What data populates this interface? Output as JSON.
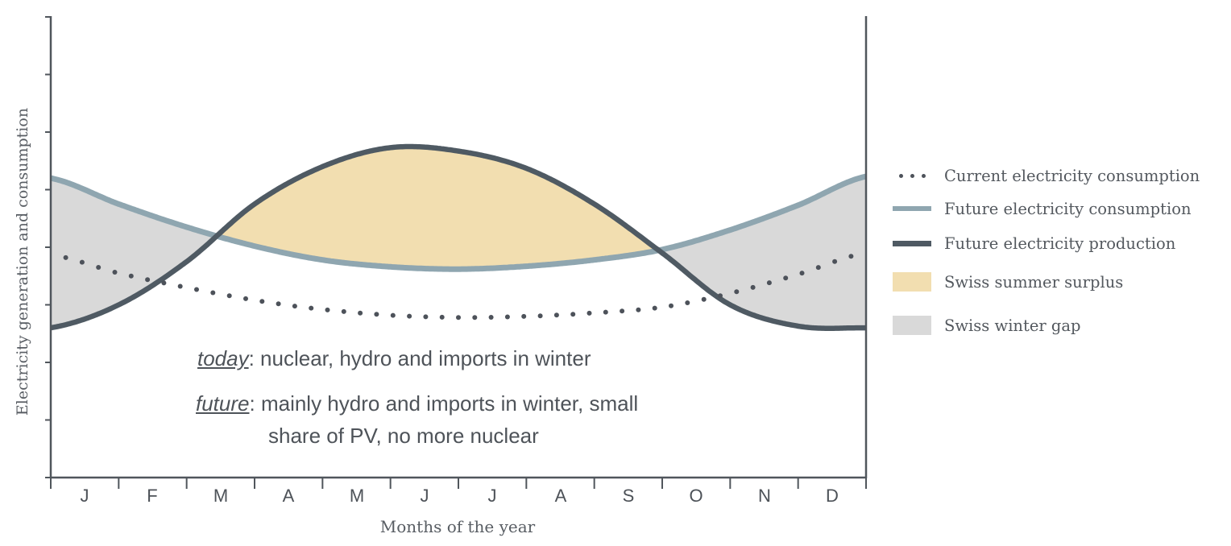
{
  "chart_data": {
    "type": "line",
    "xlabel": "Months of the year",
    "ylabel": "Electricity generation and consumption",
    "categories": [
      "J",
      "F",
      "M",
      "A",
      "M",
      "J",
      "J",
      "A",
      "S",
      "O",
      "N",
      "D"
    ],
    "ylim": [
      0,
      8
    ],
    "x": [
      0,
      1,
      2,
      3,
      4,
      5,
      6,
      7,
      8,
      9,
      10,
      11,
      12
    ],
    "series": [
      {
        "name": "Current electricity consumption",
        "style": "dotted",
        "color": "#4d525a",
        "values": [
          3.87,
          3.55,
          3.3,
          3.08,
          2.92,
          2.82,
          2.78,
          2.8,
          2.86,
          2.96,
          3.2,
          3.53,
          3.9
        ]
      },
      {
        "name": "Future electricity consumption",
        "style": "solid",
        "color": "#8fa6b0",
        "values": [
          5.2,
          4.75,
          4.35,
          4.02,
          3.78,
          3.66,
          3.62,
          3.67,
          3.78,
          3.96,
          4.3,
          4.73,
          5.23
        ]
      },
      {
        "name": "Future electricity production",
        "style": "solid",
        "color": "#4f5a63",
        "values": [
          2.6,
          3.0,
          3.75,
          4.75,
          5.4,
          5.73,
          5.67,
          5.37,
          4.75,
          3.9,
          3.0,
          2.63,
          2.6
        ]
      }
    ],
    "fills": [
      {
        "name": "Swiss summer surplus",
        "color": "#f2deb0"
      },
      {
        "name": "Swiss winter gap",
        "color": "#d9d9d9"
      }
    ],
    "annotations": [
      {
        "key": "today",
        "text": ": nuclear, hydro and imports in winter"
      },
      {
        "key": "future",
        "text": ": mainly hydro and imports in winter, small",
        "text2": "share of PV, no more nuclear"
      }
    ],
    "legend_position": "right"
  }
}
